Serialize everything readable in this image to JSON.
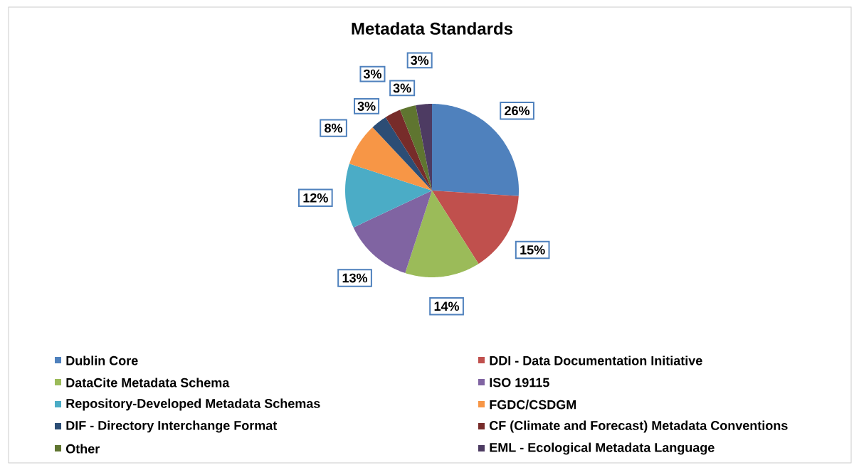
{
  "chart_data": {
    "type": "pie",
    "title": "Metadata Standards",
    "categories": [
      "Dublin Core",
      "DDI - Data Documentation Initiative",
      "DataCite Metadata Schema",
      "ISO 19115",
      "Repository-Developed Metadata Schemas",
      "FGDC/CSDGM",
      "DIF - Directory Interchange Format",
      "CF (Climate and Forecast) Metadata Conventions",
      "Other",
      "EML - Ecological Metadata Language"
    ],
    "values": [
      26,
      15,
      14,
      13,
      12,
      8,
      3,
      3,
      3,
      3
    ],
    "value_labels": [
      "26%",
      "15%",
      "14%",
      "13%",
      "12%",
      "8%",
      "3%",
      "3%",
      "3%",
      "3%"
    ],
    "colors": [
      "#4f81bd",
      "#c0504d",
      "#9bbb59",
      "#8064a2",
      "#4bacc6",
      "#f79646",
      "#2c4d75",
      "#772c2a",
      "#5f7530",
      "#4d3b62"
    ],
    "legend": "bottom"
  }
}
